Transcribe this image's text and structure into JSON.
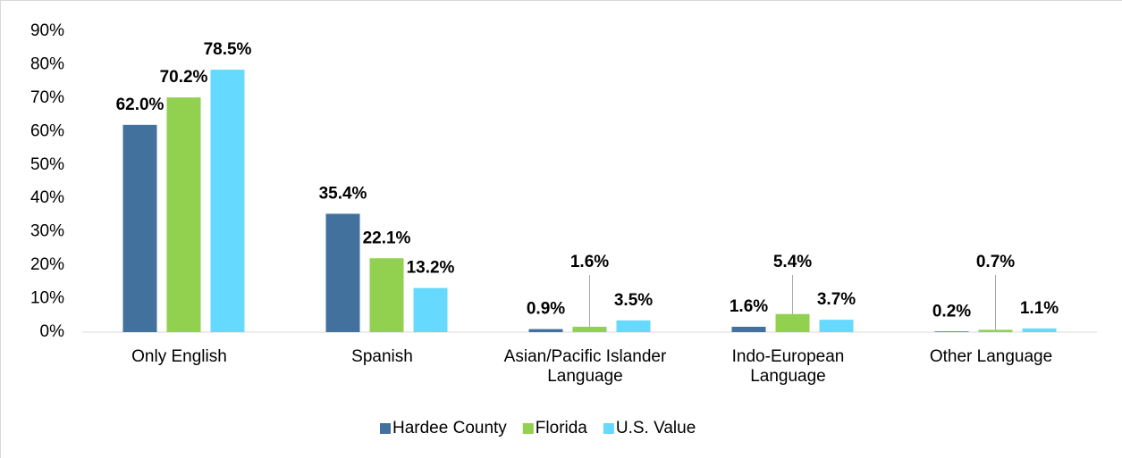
{
  "chart_data": {
    "type": "bar",
    "categories": [
      "Only English",
      "Spanish",
      "Asian/Pacific Islander Language",
      "Indo-European Language",
      "Other Language"
    ],
    "series": [
      {
        "name": "Hardee County",
        "color": "#41719c",
        "values": [
          62.0,
          35.4,
          0.9,
          1.6,
          0.2
        ],
        "value_labels": [
          "62.0%",
          "35.4%",
          "0.9%",
          "1.6%",
          "0.2%"
        ]
      },
      {
        "name": "Florida",
        "color": "#92d050",
        "values": [
          70.2,
          22.1,
          1.6,
          5.4,
          0.7
        ],
        "value_labels": [
          "70.2%",
          "22.1%",
          "1.6%",
          "5.4%",
          "0.7%"
        ]
      },
      {
        "name": "U.S. Value",
        "color": "#66d9ff",
        "values": [
          78.5,
          13.2,
          3.5,
          3.7,
          1.1
        ],
        "value_labels": [
          "78.5%",
          "13.2%",
          "3.5%",
          "3.7%",
          "1.1%"
        ]
      }
    ],
    "ylim": [
      0,
      90
    ],
    "yticks": [
      {
        "value": 0,
        "label": "0%"
      },
      {
        "value": 10,
        "label": "10%"
      },
      {
        "value": 20,
        "label": "20%"
      },
      {
        "value": 30,
        "label": "30%"
      },
      {
        "value": 40,
        "label": "40%"
      },
      {
        "value": 50,
        "label": "50%"
      },
      {
        "value": 60,
        "label": "60%"
      },
      {
        "value": 70,
        "label": "70%"
      },
      {
        "value": 80,
        "label": "80%"
      },
      {
        "value": 90,
        "label": "90%"
      }
    ],
    "grid": false,
    "legend": "bottom"
  }
}
